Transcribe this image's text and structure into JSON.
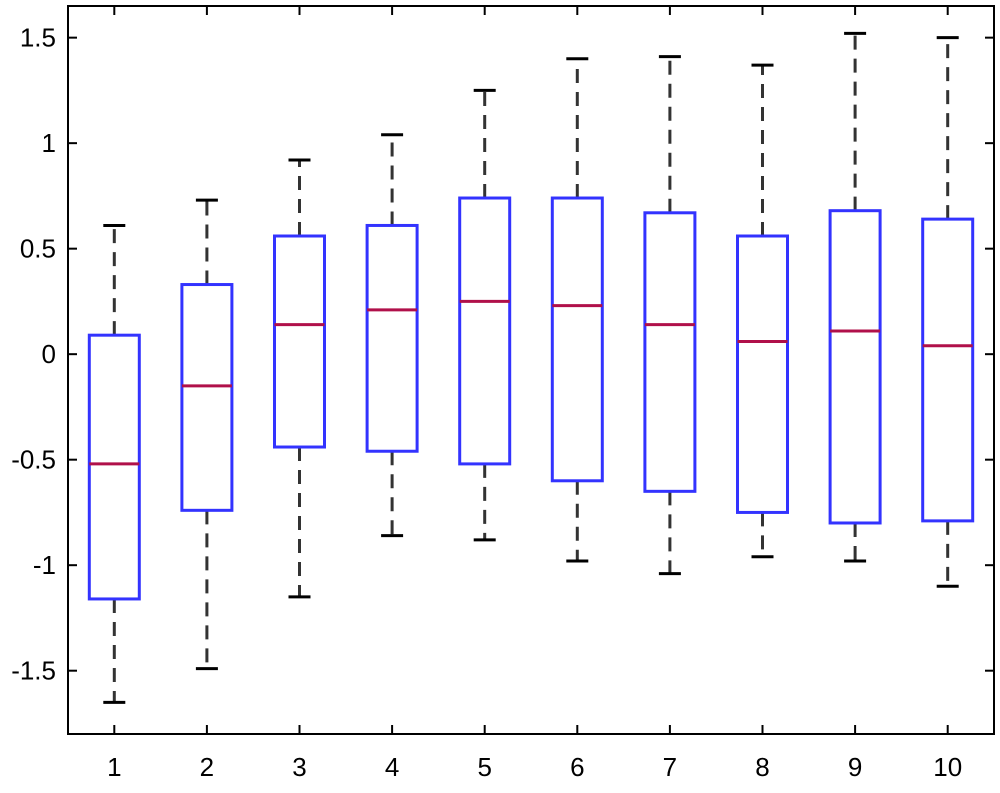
{
  "chart_data": {
    "type": "box",
    "title": "",
    "xlabel": "",
    "ylabel": "",
    "categories": [
      "1",
      "2",
      "3",
      "4",
      "5",
      "6",
      "7",
      "8",
      "9",
      "10"
    ],
    "ylim": [
      -1.8,
      1.65
    ],
    "yticks": [
      -1.5,
      -1,
      -0.5,
      0,
      0.5,
      1,
      1.5
    ],
    "ytick_labels": [
      "-1.5",
      "-1",
      "-0.5",
      "0",
      "0.5",
      "1",
      "1.5"
    ],
    "grid": false,
    "boxes": [
      {
        "category": "1",
        "whisker_low": -1.65,
        "q1": -1.16,
        "median": -0.52,
        "q3": 0.09,
        "whisker_high": 0.61
      },
      {
        "category": "2",
        "whisker_low": -1.49,
        "q1": -0.74,
        "median": -0.15,
        "q3": 0.33,
        "whisker_high": 0.73
      },
      {
        "category": "3",
        "whisker_low": -1.15,
        "q1": -0.44,
        "median": 0.14,
        "q3": 0.56,
        "whisker_high": 0.92
      },
      {
        "category": "4",
        "whisker_low": -0.86,
        "q1": -0.46,
        "median": 0.21,
        "q3": 0.61,
        "whisker_high": 1.04
      },
      {
        "category": "5",
        "whisker_low": -0.88,
        "q1": -0.52,
        "median": 0.25,
        "q3": 0.74,
        "whisker_high": 1.25
      },
      {
        "category": "6",
        "whisker_low": -0.98,
        "q1": -0.6,
        "median": 0.23,
        "q3": 0.74,
        "whisker_high": 1.4
      },
      {
        "category": "7",
        "whisker_low": -1.04,
        "q1": -0.65,
        "median": 0.14,
        "q3": 0.67,
        "whisker_high": 1.41
      },
      {
        "category": "8",
        "whisker_low": -0.96,
        "q1": -0.75,
        "median": 0.06,
        "q3": 0.56,
        "whisker_high": 1.37
      },
      {
        "category": "9",
        "whisker_low": -0.98,
        "q1": -0.8,
        "median": 0.11,
        "q3": 0.68,
        "whisker_high": 1.52
      },
      {
        "category": "10",
        "whisker_low": -1.1,
        "q1": -0.79,
        "median": 0.04,
        "q3": 0.64,
        "whisker_high": 1.5
      }
    ],
    "colors": {
      "box": "#3333ff",
      "median": "#b0104a",
      "whisker": "#333333",
      "axis": "#000000"
    }
  }
}
